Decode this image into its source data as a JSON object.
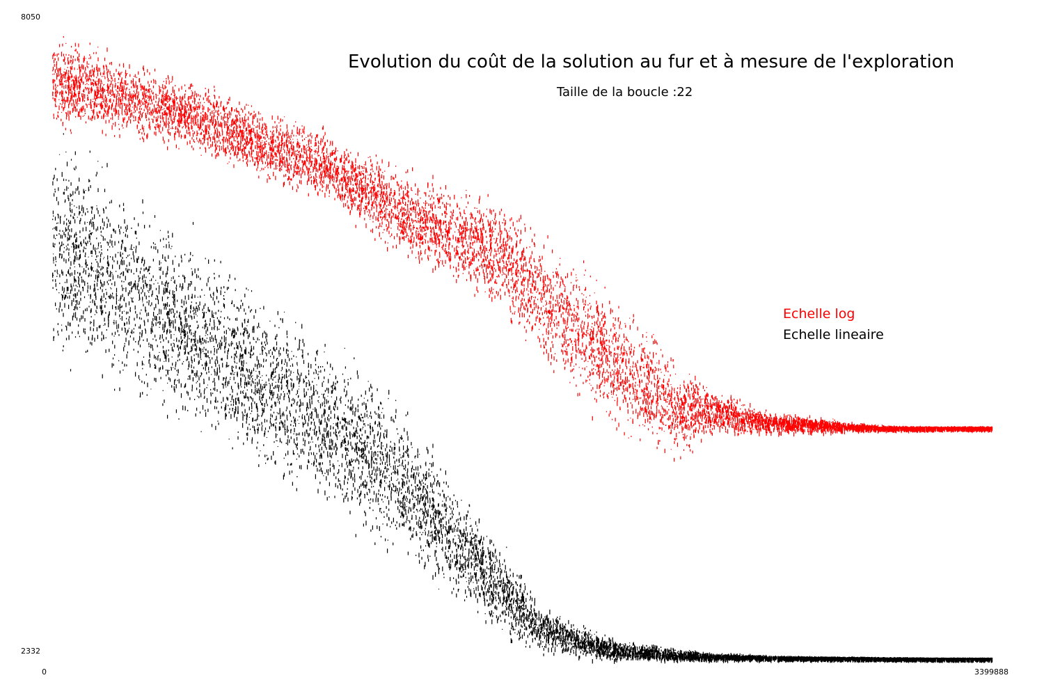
{
  "chart_data": {
    "type": "scatter",
    "title": "Evolution du coût de la solution au fur et à mesure de l'exploration",
    "subtitle": "Taille de la boucle :22",
    "xlabel": "",
    "ylabel": "",
    "xlim": [
      0,
      3399888
    ],
    "ylim": [
      2332,
      8050
    ],
    "x_ticks": [
      "0",
      "3399888"
    ],
    "y_ticks": [
      "8050",
      "2332"
    ],
    "grid": false,
    "legend_placement": "right",
    "series": [
      {
        "name": "Echelle log",
        "color": "#ff0000",
        "x": [
          0,
          250000,
          500000,
          750000,
          1000000,
          1150000,
          1300000,
          1550000,
          1650000,
          1750000,
          1900000,
          2100000,
          2250000,
          2400000,
          2550000,
          2700000,
          2800000,
          2900000,
          3050000,
          3200000,
          3399888
        ],
        "y": [
          7650,
          7500,
          7320,
          7080,
          6860,
          6620,
          6400,
          6150,
          6000,
          5700,
          5350,
          4950,
          4650,
          4600,
          4520,
          4500,
          4480,
          4470,
          4460,
          4460,
          4460
        ],
        "spread": [
          500,
          450,
          420,
          400,
          380,
          420,
          500,
          550,
          620,
          700,
          750,
          700,
          550,
          250,
          150,
          100,
          80,
          40,
          20,
          15,
          15
        ]
      },
      {
        "name": "Echelle lineaire",
        "color": "#000000",
        "x": [
          0,
          150000,
          300000,
          450000,
          600000,
          750000,
          900000,
          1050000,
          1200000,
          1300000,
          1400000,
          1550000,
          1650000,
          1750000,
          1900000,
          2050000,
          2250000,
          2400000,
          2550000,
          2700000,
          2800000,
          2900000,
          3050000,
          3200000,
          3399888
        ],
        "y": [
          6150,
          5900,
          5650,
          5400,
          5150,
          4900,
          4650,
          4400,
          4150,
          3900,
          3600,
          3200,
          2900,
          2650,
          2500,
          2420,
          2380,
          2360,
          2355,
          2350,
          2348,
          2348,
          2345,
          2343,
          2343
        ],
        "spread": [
          1250,
          1200,
          1150,
          1100,
          1050,
          1000,
          950,
          900,
          850,
          800,
          700,
          550,
          450,
          300,
          180,
          110,
          70,
          40,
          25,
          15,
          12,
          10,
          8,
          6,
          5
        ]
      }
    ]
  }
}
